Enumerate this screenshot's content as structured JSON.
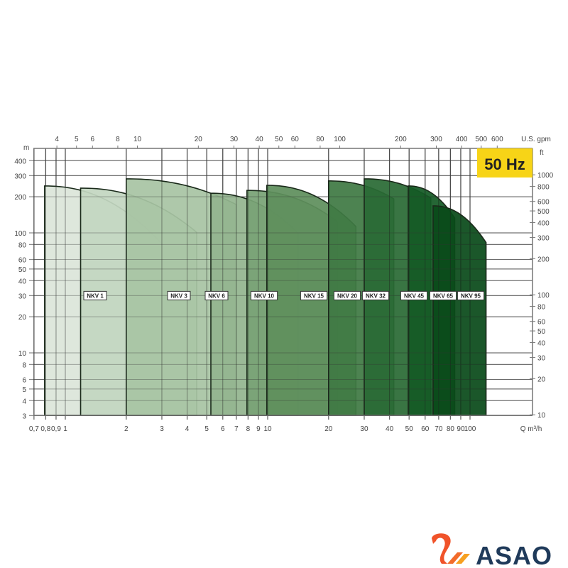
{
  "chart_data": {
    "type": "area",
    "title": "",
    "frequency_badge": "50 Hz",
    "x_axis": {
      "label": "Q m³/h",
      "scale": "log",
      "range": [
        0.7,
        200
      ],
      "ticks": [
        0.7,
        0.8,
        0.9,
        1,
        2,
        3,
        4,
        5,
        6,
        7,
        8,
        9,
        10,
        20,
        30,
        40,
        50,
        60,
        70,
        80,
        90,
        100
      ],
      "tick_labels": [
        "0,7",
        "0,8",
        "0,9",
        "1",
        "2",
        "3",
        "4",
        "5",
        "6",
        "7",
        "8",
        "9",
        "10",
        "20",
        "30",
        "40",
        "50",
        "60",
        "70",
        "80",
        "90",
        "100"
      ]
    },
    "x2_axis": {
      "label": "U.S. gpm",
      "scale": "log",
      "ticks": [
        4,
        5,
        6,
        8,
        10,
        20,
        30,
        40,
        50,
        60,
        80,
        100,
        200,
        300,
        400,
        500,
        600
      ],
      "tick_labels": [
        "4",
        "5",
        "6",
        "8",
        "10",
        "20",
        "30",
        "40",
        "50",
        "60",
        "80",
        "100",
        "200",
        "300",
        "400",
        "500",
        "600"
      ]
    },
    "y_axis": {
      "label": "m",
      "scale": "log",
      "range": [
        3,
        500
      ],
      "ticks": [
        3,
        4,
        5,
        6,
        8,
        10,
        20,
        30,
        40,
        50,
        60,
        80,
        100,
        200,
        300,
        400
      ],
      "tick_labels": [
        "3",
        "4",
        "5",
        "6",
        "8",
        "10",
        "20",
        "30",
        "40",
        "50",
        "60",
        "80",
        "100",
        "200",
        "300",
        "400"
      ]
    },
    "y2_axis": {
      "label": "ft",
      "scale": "log",
      "ticks": [
        10,
        20,
        30,
        40,
        50,
        60,
        80,
        100,
        200,
        300,
        400,
        500,
        600,
        800,
        1000
      ],
      "tick_labels": [
        "10",
        "20",
        "30",
        "40",
        "50",
        "60",
        "80",
        "100",
        "200",
        "300",
        "400",
        "500",
        "600",
        "800",
        "1000"
      ]
    },
    "grid": true,
    "series": [
      {
        "name": "NKV 1",
        "q_min": 0.79,
        "h_max": 246,
        "q_max": 3.0,
        "h_end": 81,
        "color": "#dbe5d9"
      },
      {
        "name": "NKV 3",
        "q_min": 1.19,
        "h_max": 236,
        "q_max": 4.46,
        "h_end": 101,
        "color": "#c3d6c1"
      },
      {
        "name": "NKV 6",
        "q_min": 2.0,
        "h_max": 282,
        "q_max": 7.0,
        "h_end": 172,
        "color": "#a8c4a4"
      },
      {
        "name": "NKV 10",
        "q_min": 5.24,
        "h_max": 214,
        "q_max": 14.1,
        "h_end": 100,
        "color": "#93b58f"
      },
      {
        "name": "NKV 15",
        "q_min": 7.9,
        "h_max": 226,
        "q_max": 22.1,
        "h_end": 124,
        "color": "#79a275"
      },
      {
        "name": "NKV 20",
        "q_min": 9.9,
        "h_max": 249,
        "q_max": 27.3,
        "h_end": 113,
        "color": "#5f8f5c"
      },
      {
        "name": "NKV 32",
        "q_min": 20.0,
        "h_max": 271,
        "q_max": 42,
        "h_end": 192,
        "color": "#3f7a44"
      },
      {
        "name": "NKV 45",
        "q_min": 30.0,
        "h_max": 282,
        "q_max": 64,
        "h_end": 195,
        "color": "#2a6a35"
      },
      {
        "name": "NKV 65",
        "q_min": 49.5,
        "h_max": 246,
        "q_max": 84,
        "h_end": 133,
        "color": "#145a26"
      },
      {
        "name": "NKV 95",
        "q_min": 65.7,
        "h_max": 168,
        "q_max": 120,
        "h_end": 83,
        "color": "#0a4a1a"
      }
    ],
    "badge_color": "#f7d417"
  },
  "logo": {
    "text": "ASAO",
    "colors": {
      "mark": "#f0532a",
      "text": "#1f3a5a"
    }
  }
}
